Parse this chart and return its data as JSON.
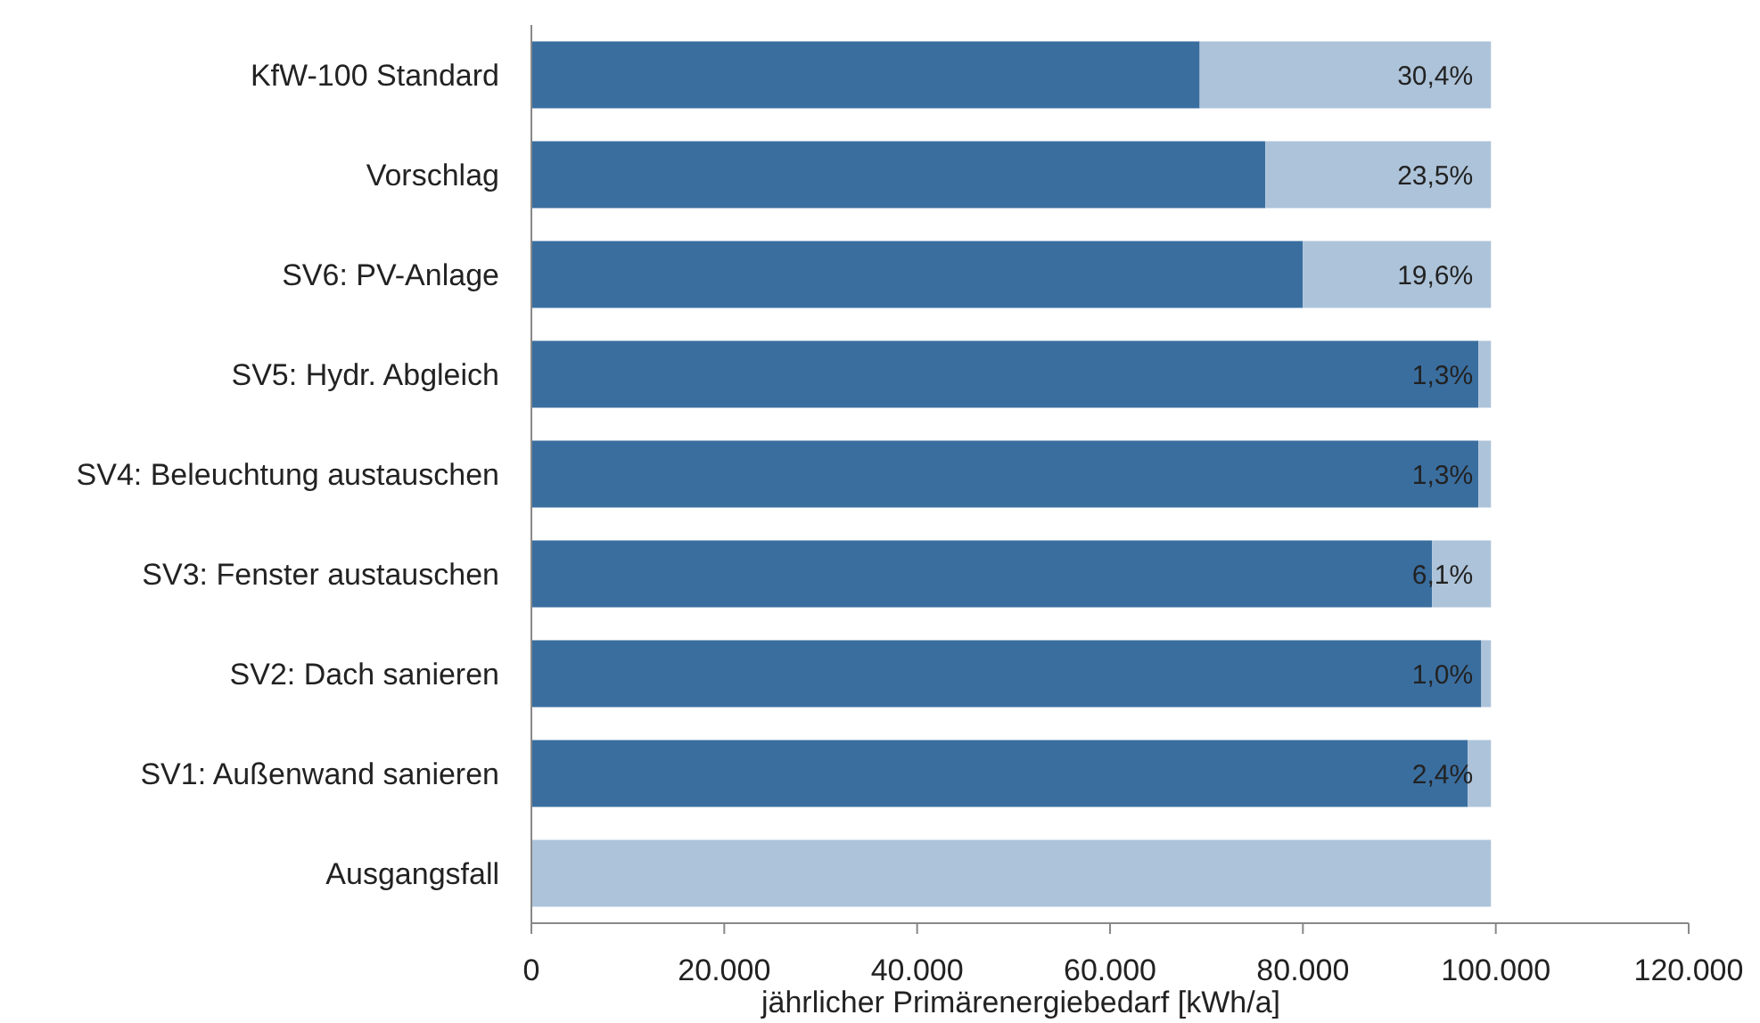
{
  "chart_data": {
    "type": "bar",
    "orientation": "horizontal",
    "stacked": true,
    "xlabel": "jährlicher Primärenergiebedarf [kWh/a]",
    "categories": [
      "KfW-100 Standard",
      "Vorschlag",
      "SV6: PV-Anlage",
      "SV5: Hydr. Abgleich",
      "SV4: Beleuchtung austauschen",
      "SV3: Fenster austauschen",
      "SV2: Dach sanieren",
      "SV1: Außenwand sanieren",
      "Ausgangsfall"
    ],
    "series": [
      {
        "color": "#3a6e9f",
        "values": [
          69300,
          76100,
          80000,
          98200,
          98200,
          93400,
          98500,
          97100,
          0
        ]
      },
      {
        "color": "#adc3d9",
        "values": [
          30200,
          23400,
          19500,
          1300,
          1300,
          6100,
          1000,
          2400,
          99500
        ]
      }
    ],
    "annotations": [
      "30,4%",
      "23,5%",
      "19,6%",
      "1,3%",
      "1,3%",
      "6,1%",
      "1,0%",
      "2,4%"
    ],
    "xlim": [
      0,
      120000
    ],
    "xticks": [
      {
        "value": 0,
        "label": "0"
      },
      {
        "value": 20000,
        "label": "20.000"
      },
      {
        "value": 40000,
        "label": "40.000"
      },
      {
        "value": 60000,
        "label": "60.000"
      },
      {
        "value": 80000,
        "label": "80.000"
      },
      {
        "value": 100000,
        "label": "100.000"
      },
      {
        "value": 120000,
        "label": "120.000"
      }
    ],
    "grid": false
  }
}
